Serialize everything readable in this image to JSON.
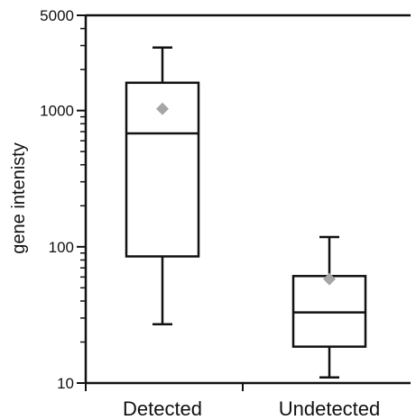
{
  "chart_data": {
    "type": "box",
    "title": "",
    "xlabel": "",
    "ylabel": "gene intenisty",
    "yscale": "log",
    "ylim": [
      10,
      5000
    ],
    "yticks": [
      10,
      100,
      1000,
      5000
    ],
    "ytick_labels": [
      "10",
      "100",
      "1000",
      "5000"
    ],
    "grid": false,
    "categories": [
      "Detected",
      "Undetected"
    ],
    "boxes": [
      {
        "category": "Detected",
        "whisker_low": 27,
        "q1": 85,
        "median": 680,
        "q3": 1600,
        "whisker_high": 2900,
        "mean": 1030
      },
      {
        "category": "Undetected",
        "whisker_low": 11,
        "q1": 18.5,
        "median": 33,
        "q3": 61,
        "whisker_high": 118,
        "mean": 58
      }
    ],
    "colors": {
      "box_stroke": "#111111",
      "mean_marker": "#a6a6a6"
    }
  }
}
